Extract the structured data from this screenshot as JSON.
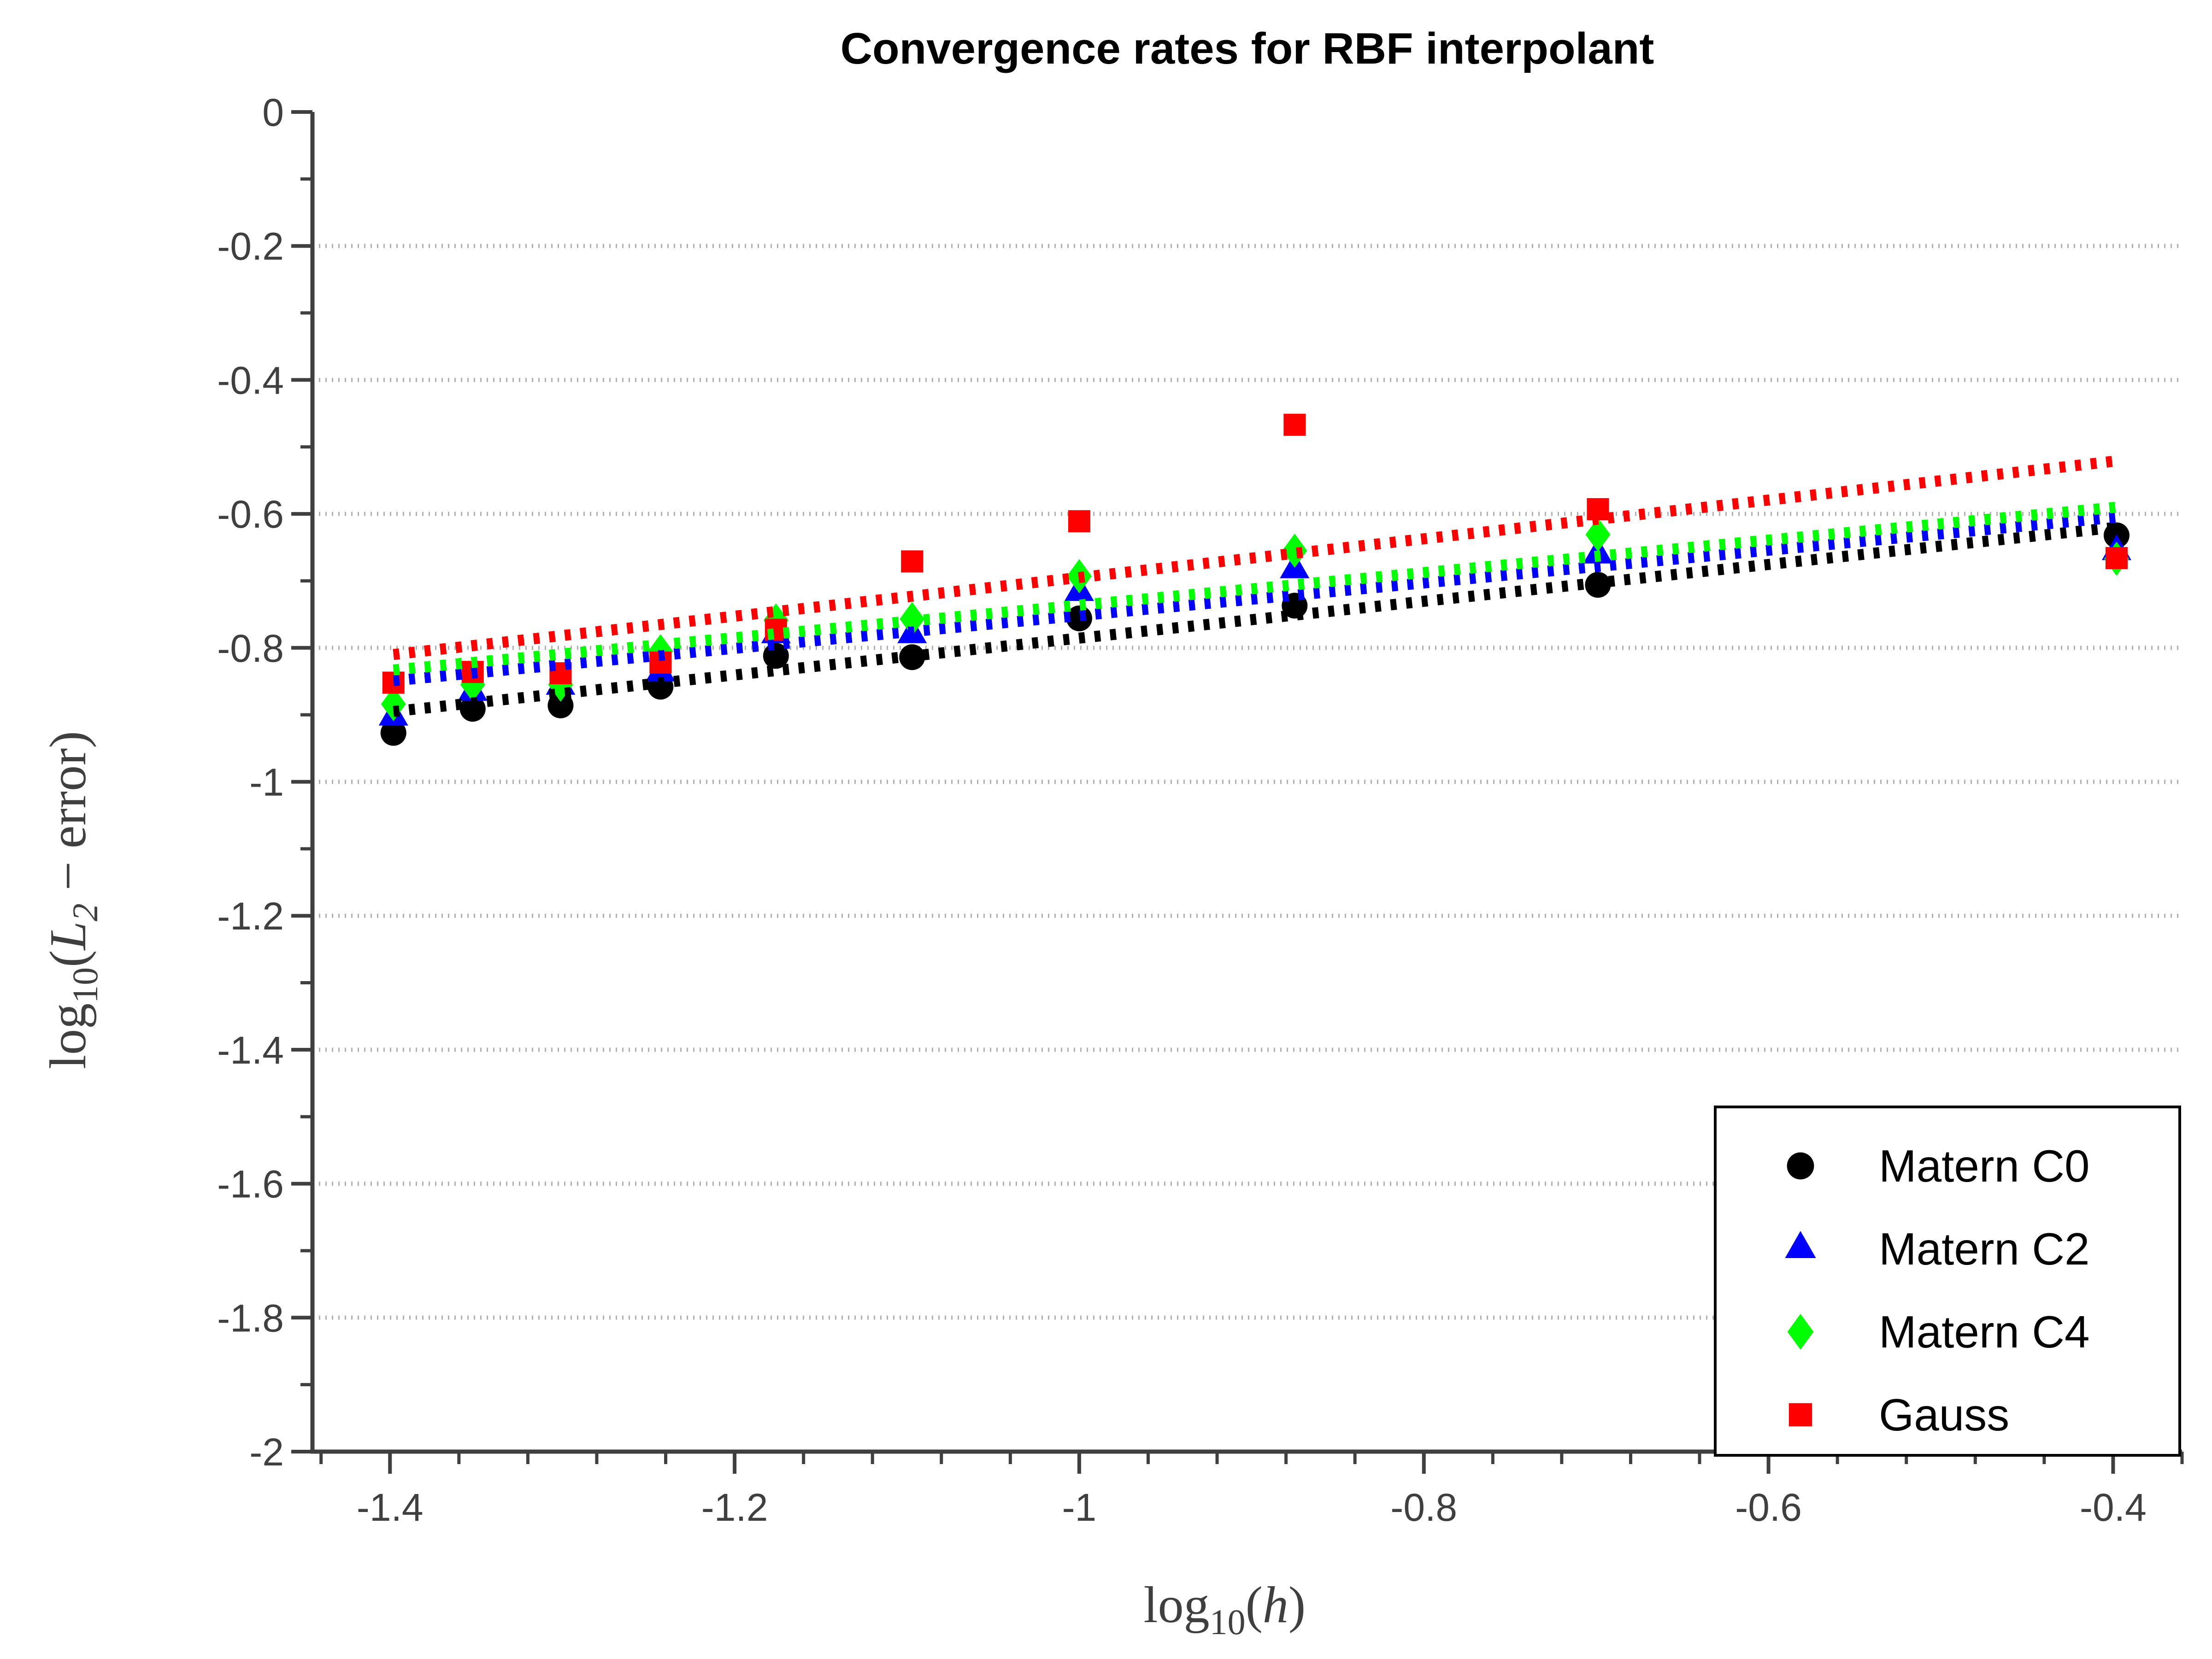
{
  "figure": {
    "background": "#ffffff"
  },
  "chart_data": {
    "type": "scatter",
    "title": "Convergence rates for RBF interpolant",
    "xlabel": "log10(h)",
    "ylabel": "log10(L2 - error)",
    "xlabel_parts": [
      {
        "t": "log",
        "style": "roman"
      },
      {
        "t": "10",
        "style": "sub"
      },
      {
        "t": "(",
        "style": "roman"
      },
      {
        "t": "h",
        "style": "italic"
      },
      {
        "t": ")",
        "style": "roman"
      }
    ],
    "ylabel_parts": [
      {
        "t": "log",
        "style": "roman"
      },
      {
        "t": "10",
        "style": "sub"
      },
      {
        "t": "(",
        "style": "roman"
      },
      {
        "t": "L",
        "style": "italic"
      },
      {
        "t": "2",
        "style": "sub-italic"
      },
      {
        "t": " − ",
        "style": "roman"
      },
      {
        "t": "error",
        "style": "roman"
      },
      {
        "t": ")",
        "style": "roman"
      }
    ],
    "xlim": [
      -1.445,
      -0.36
    ],
    "ylim": [
      -2,
      0
    ],
    "x_ticks": [
      -1.4,
      -1.2,
      -1.0,
      -0.8,
      -0.6,
      -0.4
    ],
    "x_tick_labels": [
      "-1.4",
      "-1.2",
      "-1",
      "-0.8",
      "-0.6",
      "-0.4"
    ],
    "y_ticks": [
      0,
      -0.2,
      -0.4,
      -0.6,
      -0.8,
      -1.0,
      -1.2,
      -1.4,
      -1.6,
      -1.8,
      -2.0
    ],
    "y_tick_labels": [
      "0",
      "-0.2",
      "-0.4",
      "-0.6",
      "-0.8",
      "-1",
      "-1.2",
      "-1.4",
      "-1.6",
      "-1.8",
      "-2"
    ],
    "x_minor_step": 0.04,
    "y_minor_step": 0.1,
    "grid": "horizontal dotted gridlines at major y ticks",
    "legend_position": "southeast",
    "x": [
      -1.398,
      -1.352,
      -1.301,
      -1.243,
      -1.176,
      -1.097,
      -1.0,
      -0.875,
      -0.699,
      -0.398
    ],
    "series": [
      {
        "name": "Matern C0",
        "color": "#000000",
        "marker": "circle",
        "y": [
          -0.927,
          -0.891,
          -0.886,
          -0.858,
          -0.812,
          -0.814,
          -0.756,
          -0.737,
          -0.706,
          -0.632
        ],
        "fit_line": {
          "x": [
            -1.398,
            -0.398
          ],
          "y": [
            -0.895,
            -0.62
          ]
        }
      },
      {
        "name": "Matern C2",
        "color": "#0000ff",
        "marker": "triangle",
        "y": [
          -0.903,
          -0.866,
          -0.857,
          -0.837,
          -0.78,
          -0.78,
          -0.717,
          -0.683,
          -0.661,
          -0.656
        ],
        "fit_line": {
          "x": [
            -1.398,
            -0.398
          ],
          "y": [
            -0.849,
            -0.605
          ]
        }
      },
      {
        "name": "Matern C4",
        "color": "#00ff00",
        "marker": "diamond",
        "y": [
          -0.884,
          -0.855,
          -0.855,
          -0.805,
          -0.759,
          -0.757,
          -0.693,
          -0.655,
          -0.631,
          -0.667
        ],
        "fit_line": {
          "x": [
            -1.398,
            -0.398
          ],
          "y": [
            -0.833,
            -0.59
          ]
        }
      },
      {
        "name": "Gauss",
        "color": "#ff0000",
        "marker": "square",
        "y": [
          -0.852,
          -0.836,
          -0.838,
          -0.822,
          -0.773,
          -0.671,
          -0.611,
          -0.467,
          -0.593,
          -0.666
        ],
        "fit_line": {
          "x": [
            -1.398,
            -0.398
          ],
          "y": [
            -0.81,
            -0.521
          ]
        }
      }
    ],
    "colors": {
      "axis": "#3f3f3f",
      "tick_label": "#3f3f3f",
      "grid": "#b0b0b0",
      "legend_border": "#000000",
      "title": "#000000"
    }
  }
}
